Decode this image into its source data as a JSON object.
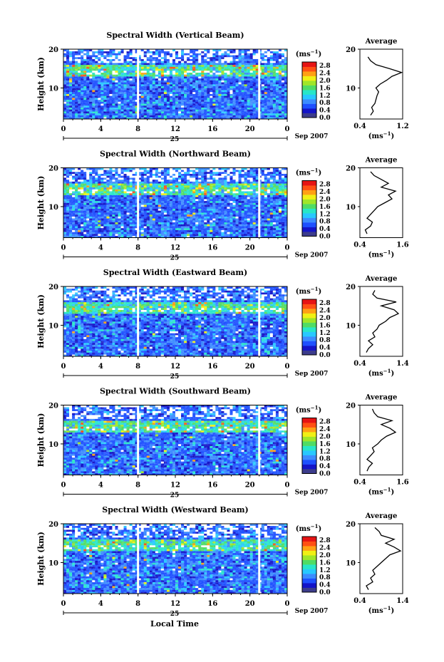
{
  "figure": {
    "x_axis_title": "Local Time",
    "colorbar_unit_base": "(ms",
    "colorbar_unit_exp": "−1",
    "colorbar_unit_close": ")",
    "colorbar_ticks": [
      "0.0",
      "0.4",
      "0.8",
      "1.2",
      "1.6",
      "2.0",
      "2.4",
      "2.8"
    ],
    "colormap": [
      "#3c3c8c",
      "#1414c8",
      "#1e50ff",
      "#3c8cff",
      "#28c8ff",
      "#28e6c8",
      "#50dc64",
      "#a0e628",
      "#f0f014",
      "#ffa014",
      "#ff5014",
      "#e61414"
    ],
    "date_label": "Sep 2007",
    "day_label": "25",
    "gap_color": "#ffffff"
  },
  "chart_data": [
    {
      "type": "heatmap",
      "title": "Spectral Width (Vertical Beam)",
      "ylabel": "Height (km)",
      "xlabel": "Local Time",
      "x_ticks": [
        "0",
        "4",
        "8",
        "12",
        "16",
        "20",
        "0"
      ],
      "xlim": [
        0,
        24
      ],
      "y_ticks": [
        "20",
        "10"
      ],
      "ylim": [
        2,
        20
      ],
      "zlim": [
        0.0,
        3.0
      ],
      "data_gaps_hours": [
        8.0,
        21.0
      ],
      "average_profile": {
        "title": "Average",
        "xlabel_base": "(ms",
        "xlabel_exp": "−1",
        "xlabel_close": ")",
        "x_ticks": [
          "0.4",
          "1.2"
        ],
        "xlim": [
          0.4,
          1.2
        ],
        "y_ticks": [
          "20",
          "10"
        ],
        "ylim": [
          2,
          20
        ],
        "heights": [
          3,
          4,
          5,
          6,
          7,
          8,
          9,
          10,
          11,
          12,
          13,
          14,
          15,
          16,
          17,
          18
        ],
        "values": [
          0.6,
          0.65,
          0.62,
          0.68,
          0.7,
          0.72,
          0.75,
          0.7,
          0.78,
          0.9,
          1.0,
          1.18,
          0.95,
          0.7,
          0.6,
          0.55
        ]
      }
    },
    {
      "type": "heatmap",
      "title": "Spectral Width (Northward Beam)",
      "ylabel": "Height (km)",
      "xlabel": "Local Time",
      "x_ticks": [
        "0",
        "4",
        "8",
        "12",
        "16",
        "20",
        "0"
      ],
      "xlim": [
        0,
        24
      ],
      "y_ticks": [
        "20",
        "10"
      ],
      "ylim": [
        2,
        20
      ],
      "zlim": [
        0.0,
        3.0
      ],
      "data_gaps_hours": [
        8.0,
        21.0
      ],
      "average_profile": {
        "title": "Average",
        "xlabel_base": "(ms",
        "xlabel_exp": "−1",
        "xlabel_close": ")",
        "x_ticks": [
          "0.4",
          "1.6"
        ],
        "xlim": [
          0.4,
          1.6
        ],
        "y_ticks": [
          "20",
          "10"
        ],
        "ylim": [
          2,
          20
        ],
        "heights": [
          3,
          4,
          5,
          6,
          7,
          8,
          9,
          10,
          11,
          12,
          13,
          14,
          15,
          16,
          17,
          18,
          19
        ],
        "values": [
          0.6,
          0.55,
          0.7,
          0.75,
          0.6,
          0.7,
          0.8,
          0.9,
          1.1,
          1.3,
          1.2,
          1.4,
          1.0,
          1.2,
          1.0,
          0.8,
          0.7
        ]
      }
    },
    {
      "type": "heatmap",
      "title": "Spectral Width (Eastward Beam)",
      "ylabel": "Height (km)",
      "xlabel": "Local Time",
      "x_ticks": [
        "0",
        "4",
        "8",
        "12",
        "16",
        "20",
        "0"
      ],
      "xlim": [
        0,
        24
      ],
      "y_ticks": [
        "20",
        "10"
      ],
      "ylim": [
        2,
        20
      ],
      "zlim": [
        0.0,
        3.0
      ],
      "data_gaps_hours": [
        8.0,
        21.0
      ],
      "average_profile": {
        "title": "Average",
        "xlabel_base": "(ms",
        "xlabel_exp": "−1",
        "xlabel_close": ")",
        "x_ticks": [
          "0.4",
          "1.4"
        ],
        "xlim": [
          0.4,
          1.4
        ],
        "y_ticks": [
          "20",
          "10"
        ],
        "ylim": [
          2,
          20
        ],
        "heights": [
          3,
          4,
          5,
          6,
          7,
          8,
          9,
          10,
          11,
          12,
          13,
          14,
          15,
          16,
          17,
          18,
          19
        ],
        "values": [
          0.55,
          0.6,
          0.7,
          0.6,
          0.75,
          0.7,
          0.8,
          0.85,
          1.0,
          1.1,
          1.3,
          1.2,
          0.9,
          1.25,
          0.8,
          0.7,
          0.75
        ]
      }
    },
    {
      "type": "heatmap",
      "title": "Spectral Width (Southward Beam)",
      "ylabel": "Height (km)",
      "xlabel": "Local Time",
      "x_ticks": [
        "0",
        "4",
        "8",
        "12",
        "16",
        "20",
        "0"
      ],
      "xlim": [
        0,
        24
      ],
      "y_ticks": [
        "20",
        "10"
      ],
      "ylim": [
        2,
        20
      ],
      "zlim": [
        0.0,
        3.0
      ],
      "data_gaps_hours": [
        8.0,
        21.0
      ],
      "average_profile": {
        "title": "Average",
        "xlabel_base": "(ms",
        "xlabel_exp": "−1",
        "xlabel_close": ")",
        "x_ticks": [
          "0.4",
          "1.6"
        ],
        "xlim": [
          0.4,
          1.6
        ],
        "y_ticks": [
          "20",
          "10"
        ],
        "ylim": [
          2,
          20
        ],
        "heights": [
          3,
          4,
          5,
          6,
          7,
          8,
          9,
          10,
          11,
          12,
          13,
          14,
          15,
          16,
          17,
          18,
          19
        ],
        "values": [
          0.6,
          0.65,
          0.75,
          0.6,
          0.7,
          0.8,
          0.75,
          0.9,
          1.0,
          1.15,
          1.4,
          1.25,
          1.0,
          1.3,
          0.9,
          0.8,
          0.75
        ]
      }
    },
    {
      "type": "heatmap",
      "title": "Spectral Width (Westward Beam)",
      "ylabel": "Height (km)",
      "xlabel": "Local Time",
      "x_ticks": [
        "0",
        "4",
        "8",
        "12",
        "16",
        "20",
        "0"
      ],
      "xlim": [
        0,
        24
      ],
      "y_ticks": [
        "20",
        "10"
      ],
      "ylim": [
        2,
        20
      ],
      "zlim": [
        0.0,
        3.0
      ],
      "data_gaps_hours": [
        8.0,
        21.0
      ],
      "average_profile": {
        "title": "Average",
        "xlabel_base": "(ms",
        "xlabel_exp": "−1",
        "xlabel_close": ")",
        "x_ticks": [
          "0.4",
          "1.4"
        ],
        "xlim": [
          0.4,
          1.4
        ],
        "y_ticks": [
          "20",
          "10"
        ],
        "ylim": [
          2,
          20
        ],
        "heights": [
          3,
          4,
          5,
          6,
          7,
          8,
          9,
          10,
          11,
          12,
          13,
          14,
          15,
          16,
          17,
          18,
          19
        ],
        "values": [
          0.6,
          0.55,
          0.7,
          0.65,
          0.75,
          0.7,
          0.8,
          0.9,
          1.0,
          1.1,
          1.35,
          1.2,
          1.0,
          1.2,
          0.9,
          0.85,
          0.75
        ]
      }
    }
  ]
}
